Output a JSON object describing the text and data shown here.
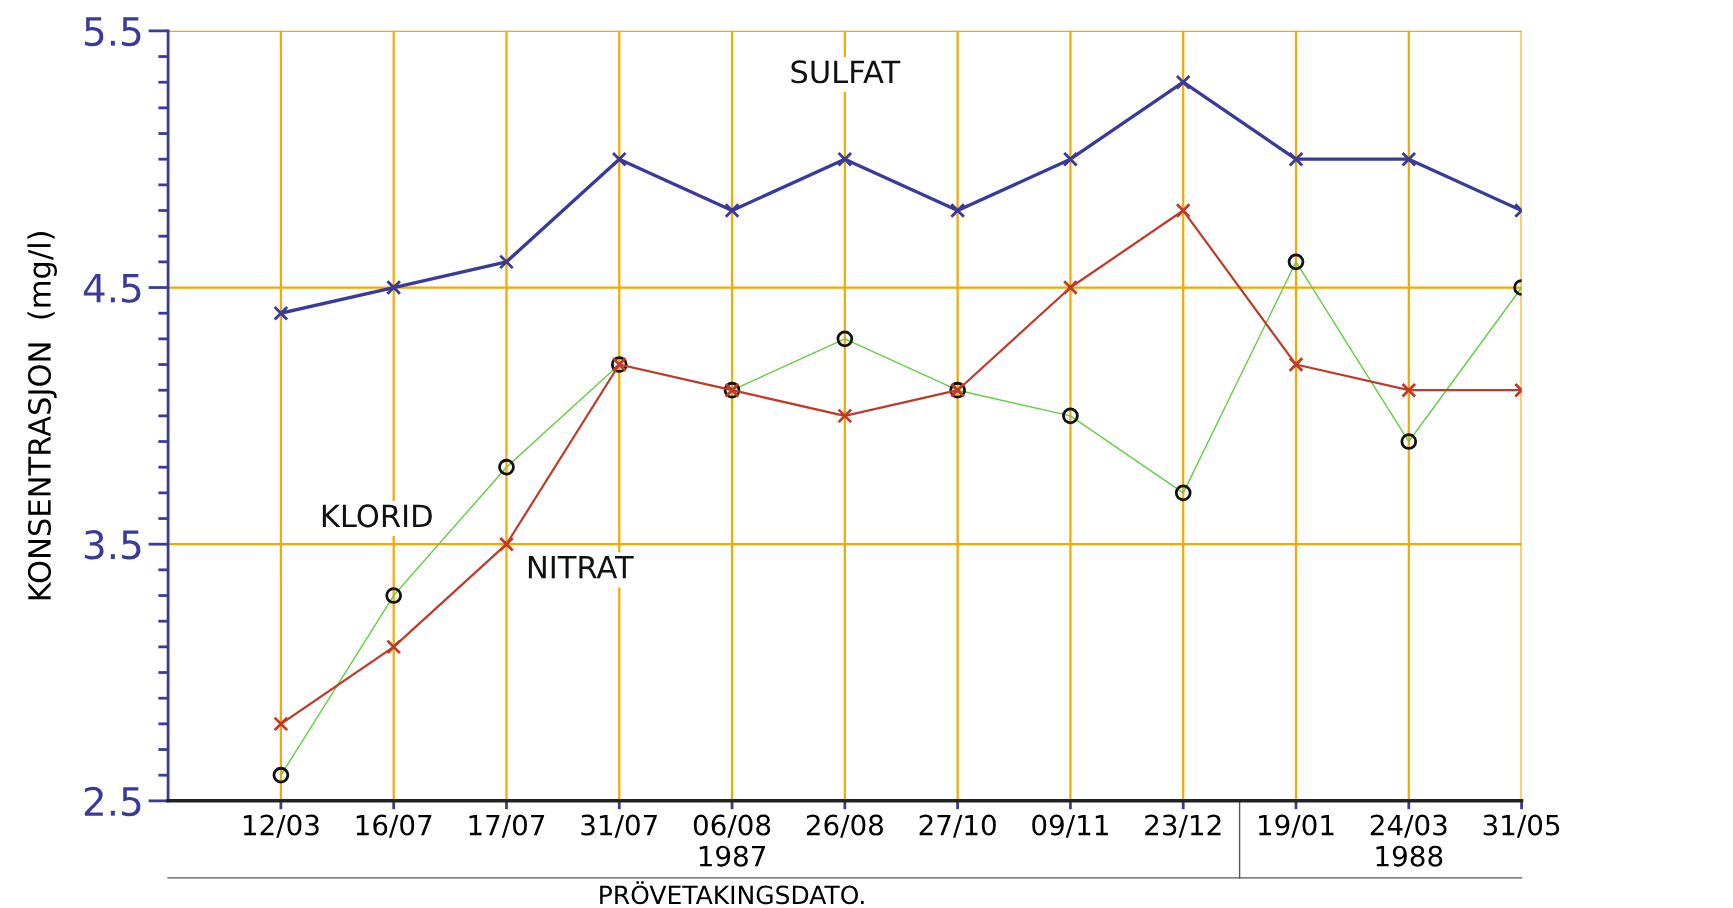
{
  "chart_data": {
    "type": "line",
    "xlabel": "PRÖVETAKINGSDATO.",
    "ylabel": "KONSENTRASJON  (mg/l)",
    "categories": [
      "12/03",
      "16/07",
      "17/07",
      "31/07",
      "06/08",
      "26/08",
      "27/10",
      "09/11",
      "23/12",
      "19/01",
      "24/03",
      "31/05"
    ],
    "series": [
      {
        "name": "SULFAT",
        "color": "#3a3a9a",
        "marker": "cross",
        "values": [
          4.4,
          4.5,
          4.6,
          5.0,
          4.8,
          5.0,
          4.8,
          5.0,
          5.3,
          5.0,
          5.0,
          4.8
        ]
      },
      {
        "name": "KLORID",
        "color": "#66cc44",
        "marker": "circle",
        "values": [
          2.6,
          3.3,
          3.8,
          4.2,
          4.1,
          4.3,
          4.1,
          4.0,
          3.7,
          4.6,
          3.9,
          4.5
        ]
      },
      {
        "name": "NITRAT",
        "color": "#c03a2a",
        "marker": "cross",
        "values": [
          2.8,
          3.1,
          3.5,
          4.2,
          4.1,
          4.0,
          4.1,
          4.5,
          4.8,
          4.2,
          4.1,
          4.1
        ]
      }
    ],
    "ylim": [
      2.5,
      5.5
    ],
    "yticks": [
      2.5,
      3.5,
      4.5,
      5.5
    ],
    "grid": true,
    "legend": false,
    "annotations": [
      "1987",
      "1988"
    ]
  }
}
